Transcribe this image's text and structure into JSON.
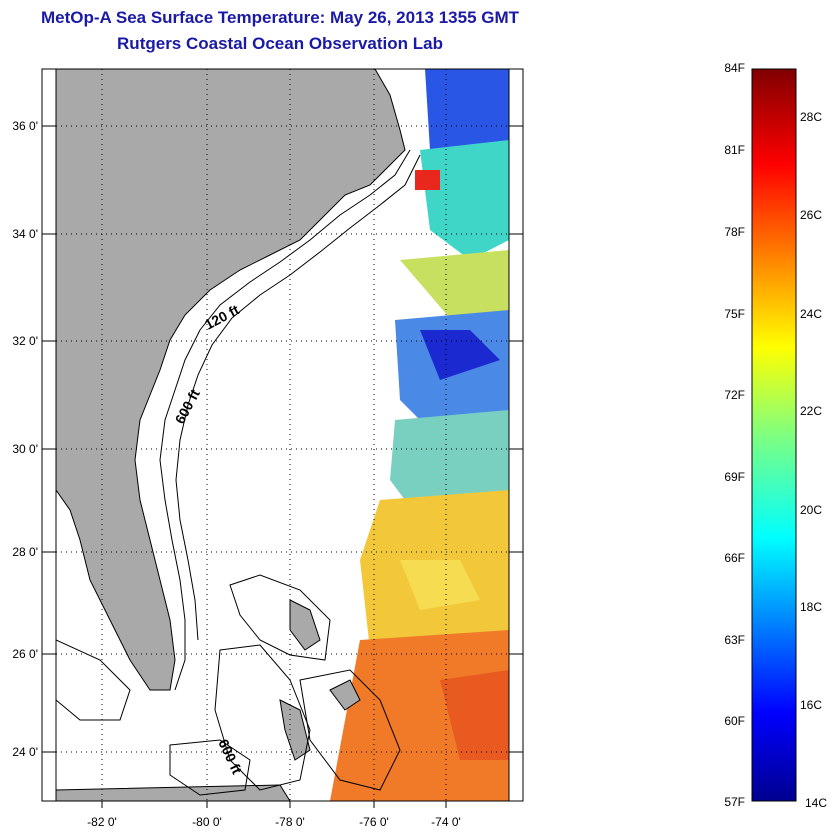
{
  "title": "MetOp-A Sea Surface Temperature:  May 26, 2013 1355 GMT",
  "subtitle": "Rutgers Coastal Ocean Observation Lab",
  "map": {
    "lon_labels": [
      "-82 0'",
      "-80 0'",
      "-78 0'",
      "-76 0'",
      "-74 0'"
    ],
    "lat_labels": [
      "36 0'",
      "34 0'",
      "32 0'",
      "30 0'",
      "28 0'",
      "26 0'",
      "24 0'"
    ],
    "contour_labels": [
      "120 ft",
      "600 ft",
      "600 ft"
    ]
  },
  "colorbar": {
    "fahrenheit": [
      "84F",
      "81F",
      "78F",
      "75F",
      "72F",
      "69F",
      "66F",
      "63F",
      "60F",
      "57F"
    ],
    "celsius": [
      "28C",
      "26C",
      "24C",
      "22C",
      "20C",
      "18C",
      "16C",
      "14C"
    ]
  },
  "colors": {
    "land": "#a9a9a9",
    "title": "#1a1aa6"
  }
}
